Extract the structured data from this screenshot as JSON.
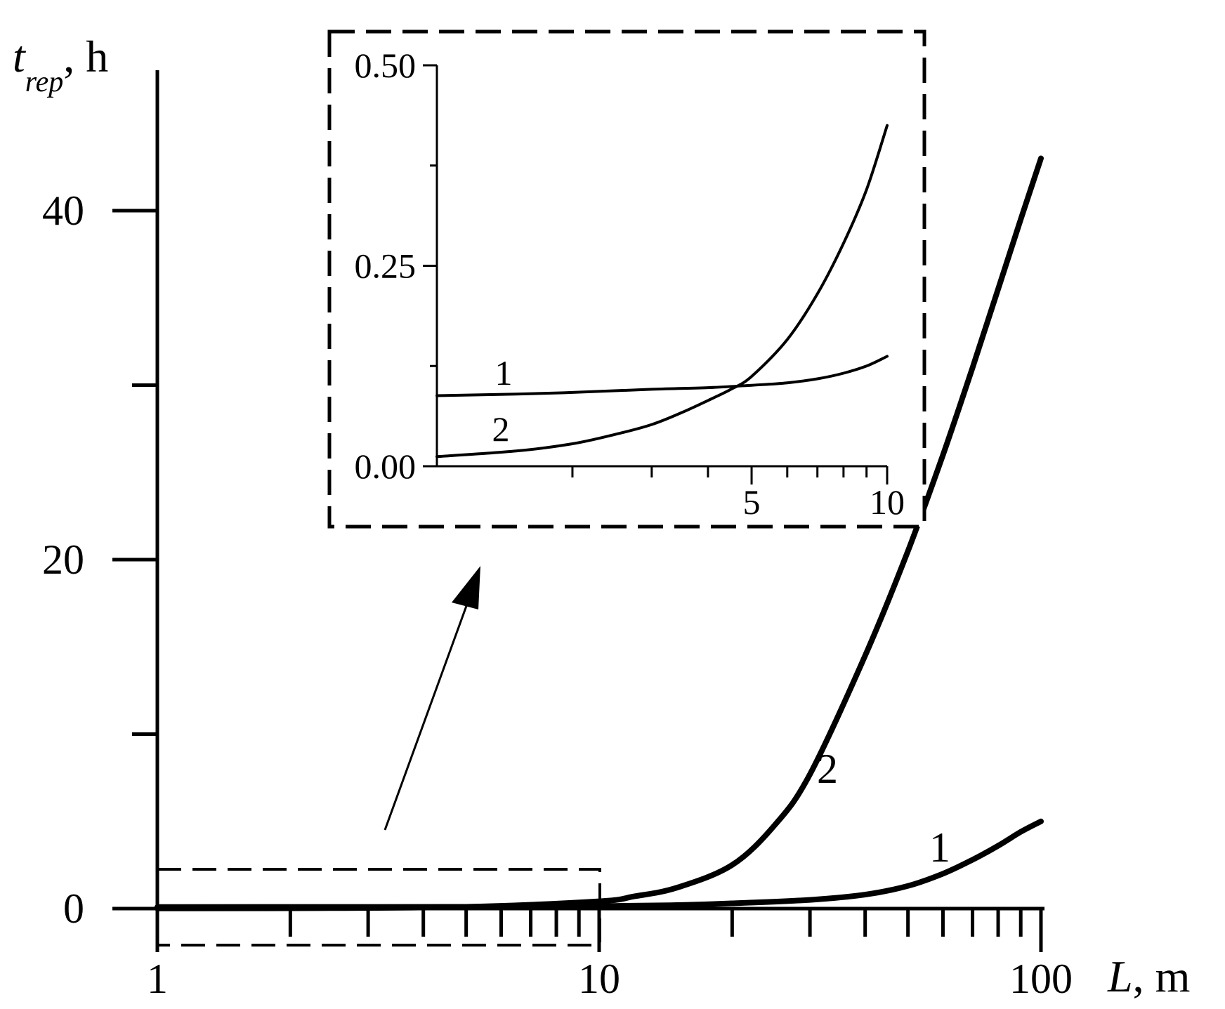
{
  "chart_data": [
    {
      "type": "line",
      "panel": "main",
      "x_scale": "log",
      "xlim": [
        1,
        100
      ],
      "ylim": [
        0,
        50
      ],
      "xlabel": "L, m",
      "ylabel_main": "t",
      "ylabel_sub": "rep",
      "ylabel_unit": ", h",
      "x_ticks": [
        {
          "v": 1,
          "label": "1"
        },
        {
          "v": 10,
          "label": "10"
        },
        {
          "v": 100,
          "label": "100"
        }
      ],
      "y_ticks": [
        {
          "v": 0,
          "label": "0"
        },
        {
          "v": 10,
          "label": ""
        },
        {
          "v": 20,
          "label": "20"
        },
        {
          "v": 30,
          "label": ""
        },
        {
          "v": 40,
          "label": "40"
        }
      ],
      "series": [
        {
          "name": "1",
          "x": [
            1,
            2,
            5,
            10,
            15,
            20,
            30,
            40,
            50,
            60,
            70,
            80,
            90,
            100
          ],
          "y": [
            0.09,
            0.095,
            0.1,
            0.14,
            0.2,
            0.3,
            0.5,
            0.8,
            1.3,
            2.0,
            2.8,
            3.6,
            4.4,
            5.0
          ]
        },
        {
          "name": "2",
          "x": [
            1,
            2,
            5,
            10,
            12,
            15,
            20,
            25,
            30,
            40,
            50,
            60,
            70,
            80,
            90,
            100
          ],
          "y": [
            0.01,
            0.02,
            0.1,
            0.42,
            0.7,
            1.2,
            2.5,
            4.8,
            7.7,
            14.5,
            20.5,
            26.0,
            31.0,
            35.5,
            39.5,
            43.0
          ]
        }
      ]
    },
    {
      "type": "line",
      "panel": "inset",
      "x_scale": "log",
      "xlim": [
        1,
        10
      ],
      "ylim": [
        0,
        0.5
      ],
      "x_ticks": [
        {
          "v": 2,
          "label": ""
        },
        {
          "v": 3,
          "label": ""
        },
        {
          "v": 4,
          "label": ""
        },
        {
          "v": 5,
          "label": "5"
        },
        {
          "v": 6,
          "label": ""
        },
        {
          "v": 7,
          "label": ""
        },
        {
          "v": 8,
          "label": ""
        },
        {
          "v": 9,
          "label": ""
        },
        {
          "v": 10,
          "label": "10"
        }
      ],
      "y_ticks": [
        {
          "v": 0,
          "label": "0.00"
        },
        {
          "v": 0.125,
          "label": ""
        },
        {
          "v": 0.25,
          "label": "0.25"
        },
        {
          "v": 0.375,
          "label": ""
        },
        {
          "v": 0.5,
          "label": "0.50"
        }
      ],
      "series": [
        {
          "name": "1",
          "x": [
            1,
            1.5,
            2,
            3,
            4,
            5,
            6,
            7,
            8,
            9,
            10
          ],
          "y": [
            0.088,
            0.09,
            0.092,
            0.096,
            0.098,
            0.101,
            0.104,
            0.109,
            0.116,
            0.125,
            0.137
          ]
        },
        {
          "name": "2",
          "x": [
            1,
            1.5,
            2,
            2.5,
            3,
            3.5,
            4,
            4.5,
            5,
            6,
            7,
            8,
            9,
            10
          ],
          "y": [
            0.012,
            0.019,
            0.028,
            0.04,
            0.052,
            0.067,
            0.082,
            0.096,
            0.112,
            0.158,
            0.215,
            0.278,
            0.345,
            0.425
          ]
        }
      ]
    }
  ]
}
